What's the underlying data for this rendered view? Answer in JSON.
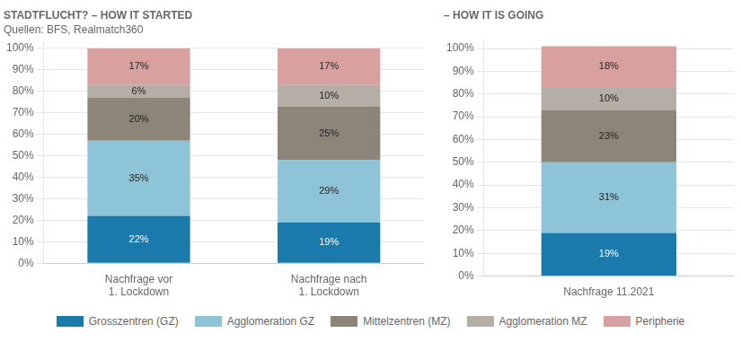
{
  "chart_data": [
    {
      "type": "bar",
      "title": "STADTFLUCHT? – HOW IT STARTED",
      "subtitle": "Quellen: BFS, Realmatch360",
      "categories": [
        "Nachfrage vor\n1. Lockdown",
        "Nachfrage nach\n1. Lockdown"
      ],
      "series": [
        {
          "name": "Grosszentren (GZ)",
          "color": "#1a7aab",
          "values": [
            22,
            19
          ],
          "value_labels": [
            "22%",
            "19%"
          ]
        },
        {
          "name": "Agglomeration GZ",
          "color": "#8ec4d8",
          "values": [
            35,
            29
          ],
          "value_labels": [
            "35%",
            "29%"
          ]
        },
        {
          "name": "Mittelzentren (MZ)",
          "color": "#8c8578",
          "values": [
            20,
            25
          ],
          "value_labels": [
            "20%",
            "25%"
          ]
        },
        {
          "name": "Agglomeration MZ",
          "color": "#b5aea4",
          "values": [
            6,
            10
          ],
          "value_labels": [
            "6%",
            "10%"
          ]
        },
        {
          "name": "Peripherie",
          "color": "#d9a0a0",
          "values": [
            17,
            17
          ],
          "value_labels": [
            "17%",
            "17%"
          ]
        }
      ],
      "stacked": true,
      "data_labels": true,
      "grid": true,
      "legend": "bottom",
      "ylim": [
        0,
        103
      ],
      "yticks": [
        {
          "value": 0,
          "label": "0%"
        },
        {
          "value": 10,
          "label": "10%"
        },
        {
          "value": 20,
          "label": "20%"
        },
        {
          "value": 30,
          "label": "30%"
        },
        {
          "value": 40,
          "label": "40%"
        },
        {
          "value": 50,
          "label": "50%"
        },
        {
          "value": 60,
          "label": "60%"
        },
        {
          "value": 70,
          "label": "70%"
        },
        {
          "value": 80,
          "label": "80%"
        },
        {
          "value": 90,
          "label": "90%"
        },
        {
          "value": 100,
          "label": "100%"
        }
      ]
    },
    {
      "type": "bar",
      "title": "– HOW IT IS GOING",
      "categories": [
        "Nachfrage 11.2021"
      ],
      "series": [
        {
          "color": "#1a7aab",
          "values": [
            19
          ],
          "value_labels": [
            "19%"
          ]
        },
        {
          "color": "#8ec4d8",
          "values": [
            31
          ],
          "value_labels": [
            "31%"
          ]
        },
        {
          "color": "#8c8578",
          "values": [
            23
          ],
          "value_labels": [
            "23%"
          ]
        },
        {
          "color": "#b5aea4",
          "values": [
            10
          ],
          "value_labels": [
            "10%"
          ]
        },
        {
          "color": "#d9a0a0",
          "values": [
            18
          ],
          "value_labels": [
            "18%"
          ]
        }
      ],
      "stacked": true,
      "data_labels": true,
      "grid": true,
      "ylim": [
        0,
        103
      ],
      "yticks": [
        {
          "value": 0,
          "label": "0%"
        },
        {
          "value": 10,
          "label": "10%"
        },
        {
          "value": 20,
          "label": "20%"
        },
        {
          "value": 30,
          "label": "30%"
        },
        {
          "value": 40,
          "label": "40%"
        },
        {
          "value": 50,
          "label": "50%"
        },
        {
          "value": 60,
          "label": "60%"
        },
        {
          "value": 70,
          "label": "70%"
        },
        {
          "value": 80,
          "label": "80%"
        },
        {
          "value": 90,
          "label": "90%"
        },
        {
          "value": 100,
          "label": "100%"
        }
      ]
    }
  ]
}
